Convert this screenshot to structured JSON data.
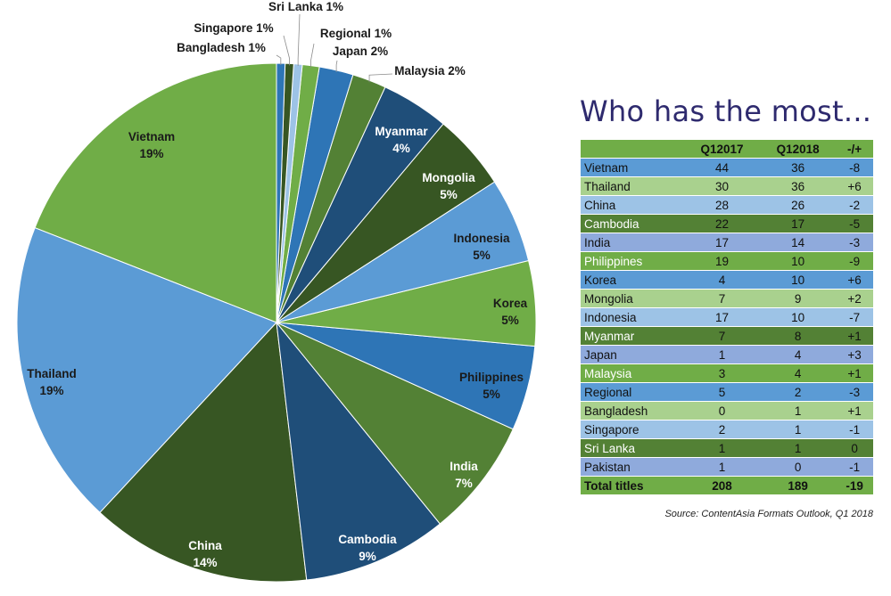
{
  "chart_data": [
    {
      "type": "pie",
      "slices": [
        {
          "label": "Vietnam",
          "pct_label": "19%",
          "value": 36
        },
        {
          "label": "Thailand",
          "pct_label": "19%",
          "value": 36
        },
        {
          "label": "China",
          "pct_label": "14%",
          "value": 26
        },
        {
          "label": "Cambodia",
          "pct_label": "9%",
          "value": 17
        },
        {
          "label": "India",
          "pct_label": "7%",
          "value": 14
        },
        {
          "label": "Philippines",
          "pct_label": "5%",
          "value": 10
        },
        {
          "label": "Korea",
          "pct_label": "5%",
          "value": 10
        },
        {
          "label": "Indonesia",
          "pct_label": "5%",
          "value": 10
        },
        {
          "label": "Mongolia",
          "pct_label": "5%",
          "value": 9
        },
        {
          "label": "Myanmar",
          "pct_label": "4%",
          "value": 8
        },
        {
          "label": "Malaysia",
          "pct_label": "2%",
          "value": 4
        },
        {
          "label": "Japan",
          "pct_label": "2%",
          "value": 4
        },
        {
          "label": "Regional",
          "pct_label": "1%",
          "value": 2
        },
        {
          "label": "Sri Lanka",
          "pct_label": "1%",
          "value": 1
        },
        {
          "label": "Singapore",
          "pct_label": "1%",
          "value": 1
        },
        {
          "label": "Bangladesh",
          "pct_label": "1%",
          "value": 1
        }
      ],
      "colors": {
        "Vietnam": "#70AD47",
        "Thailand": "#5B9BD5",
        "China": "#375623",
        "Cambodia": "#1F4E79",
        "India": "#538135",
        "Philippines": "#2E75B6",
        "Korea": "#70AD47",
        "Indonesia": "#5B9BD5",
        "Mongolia": "#375623",
        "Myanmar": "#1F4E79",
        "Malaysia": "#538135",
        "Japan": "#2E75B6",
        "Regional": "#70AD47",
        "Sri Lanka": "#9DC3E6",
        "Singapore": "#375623",
        "Bangladesh": "#2E75B6"
      }
    },
    {
      "type": "table",
      "title": "Who has the most...",
      "columns": [
        "",
        "Q12017",
        "Q12018",
        "-/+"
      ],
      "rows": [
        [
          "Vietnam",
          "44",
          "36",
          "-8"
        ],
        [
          "Thailand",
          "30",
          "36",
          "+6"
        ],
        [
          "China",
          "28",
          "26",
          "-2"
        ],
        [
          "Cambodia",
          "22",
          "17",
          "-5"
        ],
        [
          "India",
          "17",
          "14",
          "-3"
        ],
        [
          "Philippines",
          "19",
          "10",
          "-9"
        ],
        [
          "Korea",
          "4",
          "10",
          "+6"
        ],
        [
          "Mongolia",
          "7",
          "9",
          "+2"
        ],
        [
          "Indonesia",
          "17",
          "10",
          "-7"
        ],
        [
          "Myanmar",
          "7",
          "8",
          "+1"
        ],
        [
          "Japan",
          "1",
          "4",
          "+3"
        ],
        [
          "Malaysia",
          "3",
          "4",
          "+1"
        ],
        [
          "Regional",
          "5",
          "2",
          "-3"
        ],
        [
          "Bangladesh",
          "0",
          "1",
          "+1"
        ],
        [
          "Singapore",
          "2",
          "1",
          "-1"
        ],
        [
          "Sri Lanka",
          "1",
          "1",
          "0"
        ],
        [
          "Pakistan",
          "1",
          "0",
          "-1"
        ]
      ],
      "total": [
        "Total titles",
        "208",
        "189",
        "-19"
      ],
      "row_colors": [
        "#5B9BD5",
        "#A9D18E",
        "#9DC3E6",
        "#538135",
        "#8FAADC",
        "#70AD47",
        "#5B9BD5",
        "#A9D18E",
        "#9DC3E6",
        "#538135",
        "#8FAADC",
        "#70AD47",
        "#5B9BD5",
        "#A9D18E",
        "#9DC3E6",
        "#538135",
        "#8FAADC"
      ],
      "header_color": "#70AD47",
      "total_color": "#70AD47",
      "source": "Source: ContentAsia Formats Outlook, Q1 2018"
    }
  ]
}
